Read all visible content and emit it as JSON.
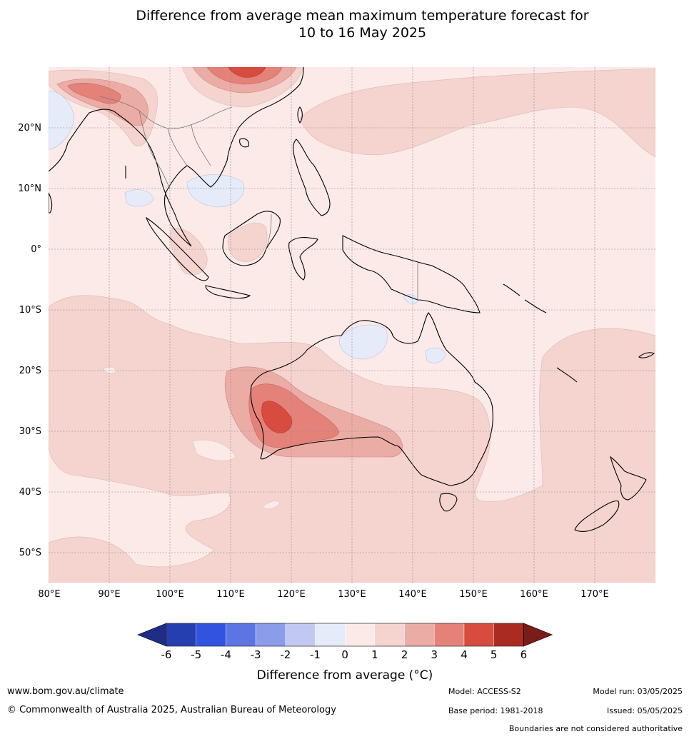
{
  "title": {
    "line1": "Difference from average mean maximum temperature forecast for",
    "line2": "10 to 16 May 2025"
  },
  "map": {
    "lat_labels": [
      "20°N",
      "10°N",
      "0°",
      "10°S",
      "20°S",
      "30°S",
      "40°S",
      "50°S"
    ],
    "lon_labels": [
      "80°E",
      "90°E",
      "100°E",
      "110°E",
      "120°E",
      "130°E",
      "140°E",
      "150°E",
      "160°E",
      "170°E"
    ],
    "extent": {
      "lon": [
        80,
        180
      ],
      "lat": [
        -55,
        30
      ]
    }
  },
  "colorbar": {
    "ticks": [
      "-6",
      "-5",
      "-4",
      "-3",
      "-2",
      "-1",
      "0",
      "1",
      "2",
      "3",
      "4",
      "5",
      "6"
    ],
    "colors": [
      "#1f2d86",
      "#263fb0",
      "#3153e0",
      "#5c75e3",
      "#8a9cea",
      "#c0c8f3",
      "#e6ebfa",
      "#fbeae8",
      "#f5d3cf",
      "#ecaca6",
      "#e4827a",
      "#d84b3f",
      "#aa2b22",
      "#7a1c17"
    ],
    "label": "Difference from average (°C)"
  },
  "footer": {
    "website": "www.bom.gov.au/climate",
    "copyright": "© Commonwealth of Australia 2025, Australian Bureau of Meteorology",
    "model": "Model: ACCESS-S2",
    "base_period": "Base period: 1981-2018",
    "model_run": "Model run: 03/05/2025",
    "issued": "Issued: 05/05/2025",
    "disclaimer": "Boundaries are not considered authoritative"
  }
}
